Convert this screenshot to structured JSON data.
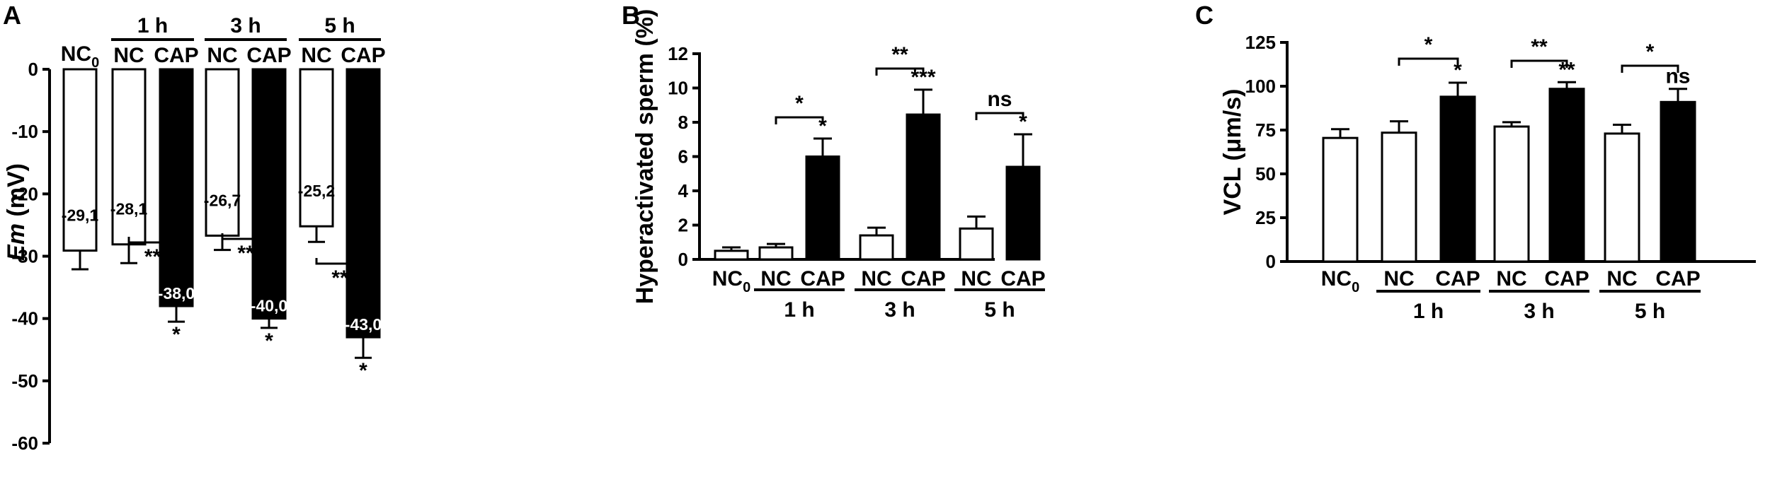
{
  "chart_data": [
    {
      "panel": "A",
      "type": "bar",
      "ylabel_em": "Em",
      "ylabel_unit": " (mV)",
      "ylim": [
        -60,
        0
      ],
      "yticks": [
        "0",
        "-10",
        "-20",
        "-30",
        "-40",
        "-50",
        "-60"
      ],
      "ytick_values": [
        0,
        -10,
        -20,
        -30,
        -40,
        -50,
        -60
      ],
      "categories": [
        "NC",
        "NC",
        "CAP",
        "NC",
        "CAP",
        "NC",
        "CAP"
      ],
      "nc0_label": {
        "main": "NC",
        "sub": "0"
      },
      "groups": [
        "1 h",
        "3 h",
        "5 h"
      ],
      "values": [
        -29.1,
        -28.1,
        -38.0,
        -26.7,
        -40.0,
        -25.2,
        -43.0
      ],
      "errors": [
        3.0,
        3.0,
        2.5,
        2.3,
        1.5,
        2.5,
        3.3
      ],
      "value_labels": [
        "-29,1",
        "-28,1",
        "-38,0",
        "-26,7",
        "-40,0",
        "-25,2",
        "-43,0"
      ],
      "fill": [
        "white",
        "white",
        "black",
        "white",
        "black",
        "white",
        "black"
      ],
      "bar_sig": [
        "",
        "",
        "*",
        "",
        "*",
        "",
        "*"
      ],
      "bracket_sig": [
        "**",
        "**",
        "**"
      ]
    },
    {
      "panel": "B",
      "type": "bar",
      "ylabel": "Hyperactivated sperm (%)",
      "ylim": [
        0,
        12
      ],
      "yticks": [
        "0",
        "2",
        "4",
        "6",
        "8",
        "10",
        "12"
      ],
      "ytick_values": [
        0,
        2,
        4,
        6,
        8,
        10,
        12
      ],
      "categories": [
        "NC",
        "NC",
        "CAP",
        "NC",
        "CAP",
        "NC",
        "CAP"
      ],
      "nc0_label": {
        "main": "NC",
        "sub": "0"
      },
      "groups": [
        "1 h",
        "3 h",
        "5 h"
      ],
      "values": [
        0.5,
        0.7,
        6.0,
        1.4,
        8.45,
        1.8,
        5.4
      ],
      "errors": [
        0.2,
        0.2,
        1.05,
        0.45,
        1.45,
        0.7,
        1.9
      ],
      "fill": [
        "white",
        "white",
        "black",
        "white",
        "black",
        "white",
        "black"
      ],
      "bar_sig": [
        "",
        "",
        "*",
        "",
        "***",
        "",
        "*"
      ],
      "bracket_sig": [
        "*",
        "**",
        "ns"
      ]
    },
    {
      "panel": "C",
      "type": "bar",
      "ylabel": "VCL (μm/s)",
      "ylim": [
        0,
        125
      ],
      "yticks": [
        "0",
        "25",
        "50",
        "75",
        "100",
        "125"
      ],
      "ytick_values": [
        0,
        25,
        50,
        75,
        100,
        125
      ],
      "categories": [
        "NC",
        "NC",
        "CAP",
        "NC",
        "CAP",
        "NC",
        "CAP"
      ],
      "nc0_label": {
        "main": "NC",
        "sub": "0"
      },
      "groups": [
        "1 h",
        "3 h",
        "5 h"
      ],
      "values": [
        70.5,
        73.5,
        94.0,
        77.0,
        98.5,
        73.0,
        91.0
      ],
      "errors": [
        5.0,
        6.5,
        8.0,
        2.5,
        3.8,
        5.0,
        7.5
      ],
      "fill": [
        "white",
        "white",
        "black",
        "white",
        "black",
        "white",
        "black"
      ],
      "bar_sig": [
        "",
        "",
        "*",
        "",
        "**",
        "",
        "ns"
      ],
      "bracket_sig": [
        "*",
        "**",
        "*"
      ]
    }
  ]
}
